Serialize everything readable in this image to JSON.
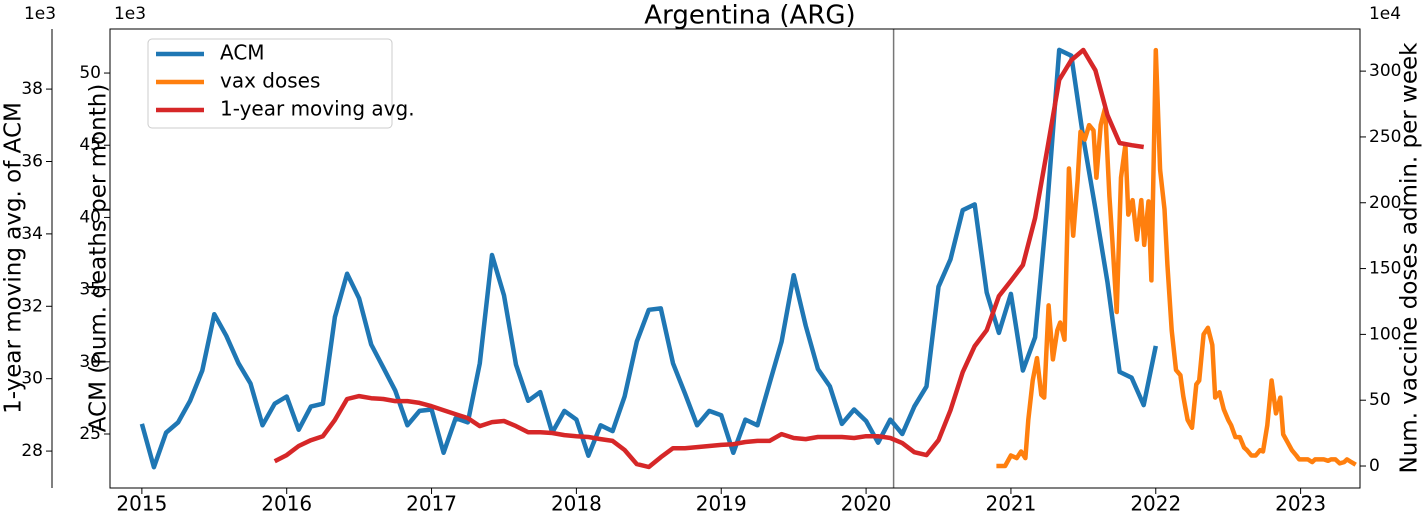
{
  "chart_data": {
    "type": "line",
    "title": "Argentina (ARG)",
    "ylabel": "ACM (num. deaths per month)",
    "y2label": "Num. vaccine doses admin. per week",
    "y3label": "1-year moving avg. of ACM",
    "y_offset": "1e3",
    "y2_offset": "1e4",
    "y3_offset": "1e3",
    "xlim": [
      2014.78,
      2023.41
    ],
    "xticks": [
      2015,
      2016,
      2017,
      2018,
      2019,
      2020,
      2021,
      2022,
      2023
    ],
    "ylim": [
      21.26,
      53.05
    ],
    "yticks": [
      25,
      30,
      35,
      40,
      45,
      50
    ],
    "y2lim": [
      -16.7,
      332
    ],
    "y2ticks": [
      0,
      50,
      100,
      150,
      200,
      250,
      300
    ],
    "y3lim": [
      26.98,
      39.66
    ],
    "y3ticks": [
      28,
      30,
      32,
      34,
      36,
      38
    ],
    "vertical_line": 2020.19,
    "legend": "upper left",
    "series": [
      {
        "name": "ACM",
        "color": "#1f77b4",
        "x": [
          2015,
          2015.083,
          2015.167,
          2015.25,
          2015.333,
          2015.417,
          2015.5,
          2015.583,
          2015.667,
          2015.75,
          2015.833,
          2015.917,
          2016,
          2016.083,
          2016.167,
          2016.25,
          2016.333,
          2016.417,
          2016.5,
          2016.583,
          2016.667,
          2016.75,
          2016.833,
          2016.917,
          2017,
          2017.083,
          2017.167,
          2017.25,
          2017.333,
          2017.417,
          2017.5,
          2017.583,
          2017.667,
          2017.75,
          2017.833,
          2017.917,
          2018,
          2018.083,
          2018.167,
          2018.25,
          2018.333,
          2018.417,
          2018.5,
          2018.583,
          2018.667,
          2018.75,
          2018.833,
          2018.917,
          2019,
          2019.083,
          2019.167,
          2019.25,
          2019.333,
          2019.417,
          2019.5,
          2019.583,
          2019.667,
          2019.75,
          2019.833,
          2019.917,
          2020,
          2020.083,
          2020.167,
          2020.25,
          2020.333,
          2020.417,
          2020.5,
          2020.583,
          2020.667,
          2020.75,
          2020.833,
          2020.917,
          2021,
          2021.083,
          2021.167,
          2021.25,
          2021.333,
          2021.417,
          2021.5,
          2021.583,
          2021.667,
          2021.75,
          2021.833,
          2021.917,
          2022
        ],
        "values": [
          25.7,
          22.7,
          25.1,
          25.8,
          27.3,
          29.4,
          33.3,
          31.8,
          29.9,
          28.5,
          25.6,
          27.1,
          27.6,
          25.3,
          26.9,
          27.1,
          33.1,
          36.1,
          34.4,
          31.2,
          29.6,
          28.0,
          25.6,
          26.6,
          26.7,
          23.7,
          26.1,
          25.8,
          29.9,
          37.4,
          34.6,
          29.8,
          27.3,
          27.9,
          25.1,
          26.6,
          26.0,
          23.5,
          25.6,
          25.2,
          27.6,
          31.4,
          33.6,
          33.7,
          29.9,
          27.8,
          25.6,
          26.6,
          26.3,
          23.7,
          26.0,
          25.6,
          28.5,
          31.4,
          36.0,
          32.5,
          29.5,
          28.3,
          25.7,
          26.7,
          25.9,
          24.4,
          26.0,
          25.0,
          26.9,
          28.3,
          35.2,
          37.1,
          40.5,
          40.9,
          34.8,
          32.0,
          34.7,
          29.4,
          31.7,
          40.7,
          51.6,
          51.2,
          45.5,
          40.6,
          35.5,
          29.3,
          28.9,
          27.0,
          31.1
        ]
      },
      {
        "name": "vax doses",
        "color": "#ff7f0e",
        "axis": "y2",
        "x": [
          2020.9,
          2020.96,
          2021.0,
          2021.04,
          2021.07,
          2021.1,
          2021.12,
          2021.15,
          2021.18,
          2021.21,
          2021.23,
          2021.26,
          2021.29,
          2021.32,
          2021.34,
          2021.37,
          2021.4,
          2021.43,
          2021.46,
          2021.48,
          2021.51,
          2021.54,
          2021.57,
          2021.59,
          2021.62,
          2021.65,
          2021.68,
          2021.7,
          2021.73,
          2021.76,
          2021.79,
          2021.81,
          2021.84,
          2021.87,
          2021.9,
          2021.92,
          2021.95,
          2021.97,
          2022.0,
          2022.03,
          2022.06,
          2022.08,
          2022.11,
          2022.14,
          2022.17,
          2022.19,
          2022.22,
          2022.25,
          2022.28,
          2022.3,
          2022.33,
          2022.36,
          2022.39,
          2022.41,
          2022.44,
          2022.47,
          2022.5,
          2022.52,
          2022.55,
          2022.58,
          2022.61,
          2022.63,
          2022.66,
          2022.69,
          2022.72,
          2022.74,
          2022.77,
          2022.8,
          2022.83,
          2022.86,
          2022.88,
          2022.91,
          2022.94,
          2022.97,
          2022.99,
          2023.02,
          2023.05,
          2023.08,
          2023.1,
          2023.13,
          2023.16,
          2023.19,
          2023.21,
          2023.24,
          2023.27,
          2023.3,
          2023.32,
          2023.35,
          2023.38
        ],
        "values": [
          0,
          0,
          8,
          6,
          11,
          6,
          35,
          65,
          82,
          54,
          52,
          122,
          81,
          103,
          109,
          96,
          226,
          175,
          217,
          254,
          248,
          259,
          255,
          219,
          259,
          272,
          205,
          172,
          117,
          219,
          244,
          191,
          202,
          172,
          202,
          168,
          201,
          141,
          316,
          225,
          195,
          153,
          103,
          73,
          69,
          53,
          35,
          29,
          62,
          65,
          100,
          105,
          92,
          52,
          56,
          43,
          35,
          31,
          22,
          22,
          14,
          12,
          8,
          8,
          12,
          11,
          31,
          65,
          40,
          52,
          24,
          18,
          12,
          8,
          5,
          5,
          5,
          3,
          5,
          5,
          5,
          4,
          5,
          5,
          2,
          3,
          5,
          3,
          1
        ]
      },
      {
        "name": "1-year moving avg.",
        "color": "#d62728",
        "axis": "y3",
        "x": [
          2015.917,
          2016,
          2016.083,
          2016.167,
          2016.25,
          2016.333,
          2016.417,
          2016.5,
          2016.583,
          2016.667,
          2016.75,
          2016.833,
          2016.917,
          2017,
          2017.083,
          2017.167,
          2017.25,
          2017.333,
          2017.417,
          2017.5,
          2017.583,
          2017.667,
          2017.75,
          2017.833,
          2017.917,
          2018,
          2018.083,
          2018.167,
          2018.25,
          2018.333,
          2018.417,
          2018.5,
          2018.583,
          2018.667,
          2018.75,
          2018.833,
          2018.917,
          2019,
          2019.083,
          2019.167,
          2019.25,
          2019.333,
          2019.417,
          2019.5,
          2019.583,
          2019.667,
          2019.75,
          2019.833,
          2019.917,
          2020,
          2020.083,
          2020.167,
          2020.25,
          2020.333,
          2020.417,
          2020.5,
          2020.583,
          2020.667,
          2020.75,
          2020.833,
          2020.917,
          2021,
          2021.083,
          2021.167,
          2021.25,
          2021.333,
          2021.417,
          2021.5,
          2021.583,
          2021.667,
          2021.75,
          2021.833,
          2021.917
        ],
        "values": [
          27.72,
          27.89,
          28.14,
          28.3,
          28.41,
          28.86,
          29.44,
          29.52,
          29.46,
          29.44,
          29.38,
          29.38,
          29.33,
          29.24,
          29.13,
          29.02,
          28.91,
          28.69,
          28.8,
          28.83,
          28.69,
          28.52,
          28.52,
          28.5,
          28.44,
          28.41,
          28.39,
          28.33,
          28.28,
          28.03,
          27.64,
          27.56,
          27.83,
          28.08,
          28.08,
          28.11,
          28.14,
          28.17,
          28.19,
          28.25,
          28.28,
          28.28,
          28.47,
          28.36,
          28.33,
          28.39,
          28.39,
          28.39,
          28.36,
          28.41,
          28.41,
          28.36,
          28.22,
          27.97,
          27.89,
          28.3,
          29.13,
          30.18,
          30.9,
          31.34,
          32.28,
          32.7,
          33.14,
          34.44,
          36.31,
          38.25,
          38.8,
          39.08,
          38.52,
          37.28,
          36.51,
          36.45,
          36.4
        ]
      }
    ]
  }
}
